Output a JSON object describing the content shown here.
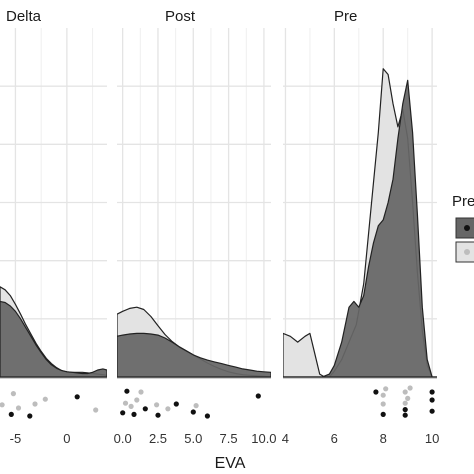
{
  "chart_data": {
    "type": "area",
    "subtype": "density with jittered rug points",
    "xlabel": "EVA",
    "colors": {
      "dark_fill": "#666666",
      "light_fill": "#e3e3e3",
      "dark_point": "#111111",
      "light_point": "#bdbdbd",
      "panel_background": "#ffffff",
      "grid": "#e4e4e4"
    },
    "legend": {
      "title": "Pre",
      "placement": "right",
      "entries": [
        "",
        ""
      ],
      "colors": [
        "#666666",
        "#e3e3e3"
      ]
    },
    "grid": true,
    "panels": [
      {
        "strip": "Delta",
        "xlim": [
          -6.5,
          3.9
        ],
        "xticks": [
          -5,
          0
        ],
        "tick_labels": [
          "-5",
          "0"
        ],
        "series": [
          {
            "name": "",
            "fill": "#e3e3e3",
            "x": [
              -6.5,
              -6.0,
              -5.5,
              -5.0,
              -4.5,
              -4.0,
              -3.5,
              -3.0,
              -2.5,
              -2.0,
              -1.5,
              -1.0,
              -0.5,
              0.0,
              0.5,
              1.0,
              1.5,
              2.0,
              2.5,
              3.0,
              3.5,
              3.9
            ],
            "y": [
              0.155,
              0.15,
              0.14,
              0.125,
              0.108,
              0.09,
              0.074,
              0.058,
              0.044,
              0.032,
              0.023,
              0.016,
              0.011,
              0.009,
              0.008,
              0.008,
              0.008,
              0.007,
              0.006,
              0.005,
              0.004,
              0.003
            ]
          },
          {
            "name": "",
            "fill": "#666666",
            "x": [
              -6.5,
              -6.0,
              -5.5,
              -5.0,
              -4.5,
              -4.0,
              -3.5,
              -3.0,
              -2.5,
              -2.0,
              -1.5,
              -1.0,
              -0.5,
              0.0,
              0.5,
              1.0,
              1.5,
              2.0,
              2.5,
              3.0,
              3.5,
              3.9
            ],
            "y": [
              0.13,
              0.128,
              0.122,
              0.113,
              0.1,
              0.085,
              0.07,
              0.055,
              0.042,
              0.03,
              0.021,
              0.015,
              0.011,
              0.009,
              0.008,
              0.007,
              0.006,
              0.006,
              0.008,
              0.012,
              0.014,
              0.012
            ]
          }
        ],
        "points": [
          {
            "x": -6.3,
            "y": 0.62,
            "group": "light"
          },
          {
            "x": -5.4,
            "y": 0.86,
            "group": "dark"
          },
          {
            "x": -5.2,
            "y": 0.34,
            "group": "light"
          },
          {
            "x": -4.7,
            "y": 0.7,
            "group": "light"
          },
          {
            "x": -3.6,
            "y": 0.9,
            "group": "dark"
          },
          {
            "x": -3.1,
            "y": 0.6,
            "group": "light"
          },
          {
            "x": -2.1,
            "y": 0.48,
            "group": "light"
          },
          {
            "x": 1.0,
            "y": 0.42,
            "group": "dark"
          },
          {
            "x": 2.8,
            "y": 0.75,
            "group": "light"
          }
        ]
      },
      {
        "strip": "Post",
        "xlim": [
          -0.4,
          10.5
        ],
        "xticks": [
          0.0,
          2.5,
          5.0,
          7.5,
          10.0
        ],
        "tick_labels": [
          "0.0",
          "2.5",
          "5.0",
          "7.5",
          "10.0"
        ],
        "series": [
          {
            "name": "",
            "fill": "#e3e3e3",
            "x": [
              -0.4,
              0.0,
              0.5,
              1.0,
              1.5,
              2.0,
              2.5,
              3.0,
              3.5,
              4.0,
              4.5,
              5.0,
              5.5,
              6.0,
              6.5,
              7.0,
              7.5,
              8.0,
              8.5,
              9.0,
              9.5,
              10.0,
              10.5
            ],
            "y": [
              0.108,
              0.113,
              0.118,
              0.12,
              0.116,
              0.104,
              0.088,
              0.073,
              0.061,
              0.052,
              0.045,
              0.038,
              0.031,
              0.024,
              0.018,
              0.013,
              0.009,
              0.006,
              0.004,
              0.003,
              0.002,
              0.001,
              0.0
            ]
          },
          {
            "name": "",
            "fill": "#666666",
            "x": [
              -0.4,
              0.0,
              0.5,
              1.0,
              1.5,
              2.0,
              2.5,
              3.0,
              3.5,
              4.0,
              4.5,
              5.0,
              5.5,
              6.0,
              6.5,
              7.0,
              7.5,
              8.0,
              8.5,
              9.0,
              9.5,
              10.0,
              10.5
            ],
            "y": [
              0.07,
              0.072,
              0.074,
              0.075,
              0.075,
              0.074,
              0.072,
              0.067,
              0.06,
              0.052,
              0.045,
              0.038,
              0.033,
              0.029,
              0.026,
              0.023,
              0.02,
              0.017,
              0.014,
              0.012,
              0.01,
              0.009,
              0.008
            ]
          }
        ],
        "points": [
          {
            "x": 0.0,
            "y": 0.82,
            "group": "dark"
          },
          {
            "x": 0.2,
            "y": 0.58,
            "group": "light"
          },
          {
            "x": 0.3,
            "y": 0.28,
            "group": "dark"
          },
          {
            "x": 0.6,
            "y": 0.66,
            "group": "light"
          },
          {
            "x": 0.8,
            "y": 0.86,
            "group": "dark"
          },
          {
            "x": 1.0,
            "y": 0.5,
            "group": "light"
          },
          {
            "x": 1.3,
            "y": 0.3,
            "group": "light"
          },
          {
            "x": 1.6,
            "y": 0.72,
            "group": "dark"
          },
          {
            "x": 2.4,
            "y": 0.62,
            "group": "light"
          },
          {
            "x": 2.5,
            "y": 0.88,
            "group": "dark"
          },
          {
            "x": 3.2,
            "y": 0.72,
            "group": "light"
          },
          {
            "x": 3.8,
            "y": 0.6,
            "group": "dark"
          },
          {
            "x": 5.0,
            "y": 0.8,
            "group": "dark"
          },
          {
            "x": 5.2,
            "y": 0.64,
            "group": "light"
          },
          {
            "x": 6.0,
            "y": 0.9,
            "group": "dark"
          },
          {
            "x": 9.6,
            "y": 0.4,
            "group": "dark"
          }
        ]
      },
      {
        "strip": "Pre",
        "xlim": [
          3.9,
          10.2
        ],
        "xticks": [
          4,
          6,
          8,
          10
        ],
        "tick_labels": [
          "4",
          "6",
          "8",
          "10"
        ],
        "series": [
          {
            "name": "",
            "fill": "#e3e3e3",
            "x": [
              3.9,
              4.2,
              4.5,
              4.8,
              5.0,
              5.2,
              5.4,
              5.6,
              5.8,
              6.0,
              6.3,
              6.6,
              6.9,
              7.2,
              7.5,
              7.8,
              8.0,
              8.2,
              8.4,
              8.6,
              8.8,
              9.0,
              9.2,
              9.4,
              9.6,
              9.8,
              10.0,
              10.2
            ],
            "y": [
              0.075,
              0.07,
              0.06,
              0.07,
              0.075,
              0.04,
              0.005,
              0.0,
              0.0,
              0.01,
              0.03,
              0.06,
              0.09,
              0.16,
              0.29,
              0.42,
              0.53,
              0.52,
              0.47,
              0.43,
              0.46,
              0.41,
              0.3,
              0.18,
              0.08,
              0.02,
              0.0,
              0.0
            ]
          },
          {
            "name": "",
            "fill": "#666666",
            "x": [
              3.9,
              4.5,
              5.0,
              5.5,
              5.8,
              6.0,
              6.3,
              6.6,
              6.8,
              7.0,
              7.2,
              7.4,
              7.6,
              7.8,
              8.0,
              8.2,
              8.4,
              8.6,
              8.8,
              9.0,
              9.2,
              9.4,
              9.6,
              9.8,
              10.0,
              10.2
            ],
            "y": [
              0.0,
              0.0,
              0.0,
              0.0,
              0.005,
              0.02,
              0.06,
              0.12,
              0.13,
              0.12,
              0.14,
              0.19,
              0.23,
              0.26,
              0.27,
              0.3,
              0.34,
              0.41,
              0.47,
              0.51,
              0.42,
              0.28,
              0.12,
              0.03,
              0.0,
              0.0
            ]
          }
        ],
        "points": [
          {
            "x": 7.7,
            "y": 0.3,
            "group": "dark"
          },
          {
            "x": 8.0,
            "y": 0.86,
            "group": "dark"
          },
          {
            "x": 8.0,
            "y": 0.6,
            "group": "light"
          },
          {
            "x": 8.0,
            "y": 0.38,
            "group": "light"
          },
          {
            "x": 8.1,
            "y": 0.22,
            "group": "light"
          },
          {
            "x": 8.9,
            "y": 0.88,
            "group": "dark"
          },
          {
            "x": 8.9,
            "y": 0.74,
            "group": "dark"
          },
          {
            "x": 8.9,
            "y": 0.58,
            "group": "light"
          },
          {
            "x": 9.0,
            "y": 0.46,
            "group": "light"
          },
          {
            "x": 8.9,
            "y": 0.3,
            "group": "light"
          },
          {
            "x": 9.1,
            "y": 0.2,
            "group": "light"
          },
          {
            "x": 10.0,
            "y": 0.78,
            "group": "dark"
          },
          {
            "x": 10.0,
            "y": 0.5,
            "group": "dark"
          },
          {
            "x": 10.0,
            "y": 0.3,
            "group": "dark"
          }
        ]
      }
    ]
  }
}
